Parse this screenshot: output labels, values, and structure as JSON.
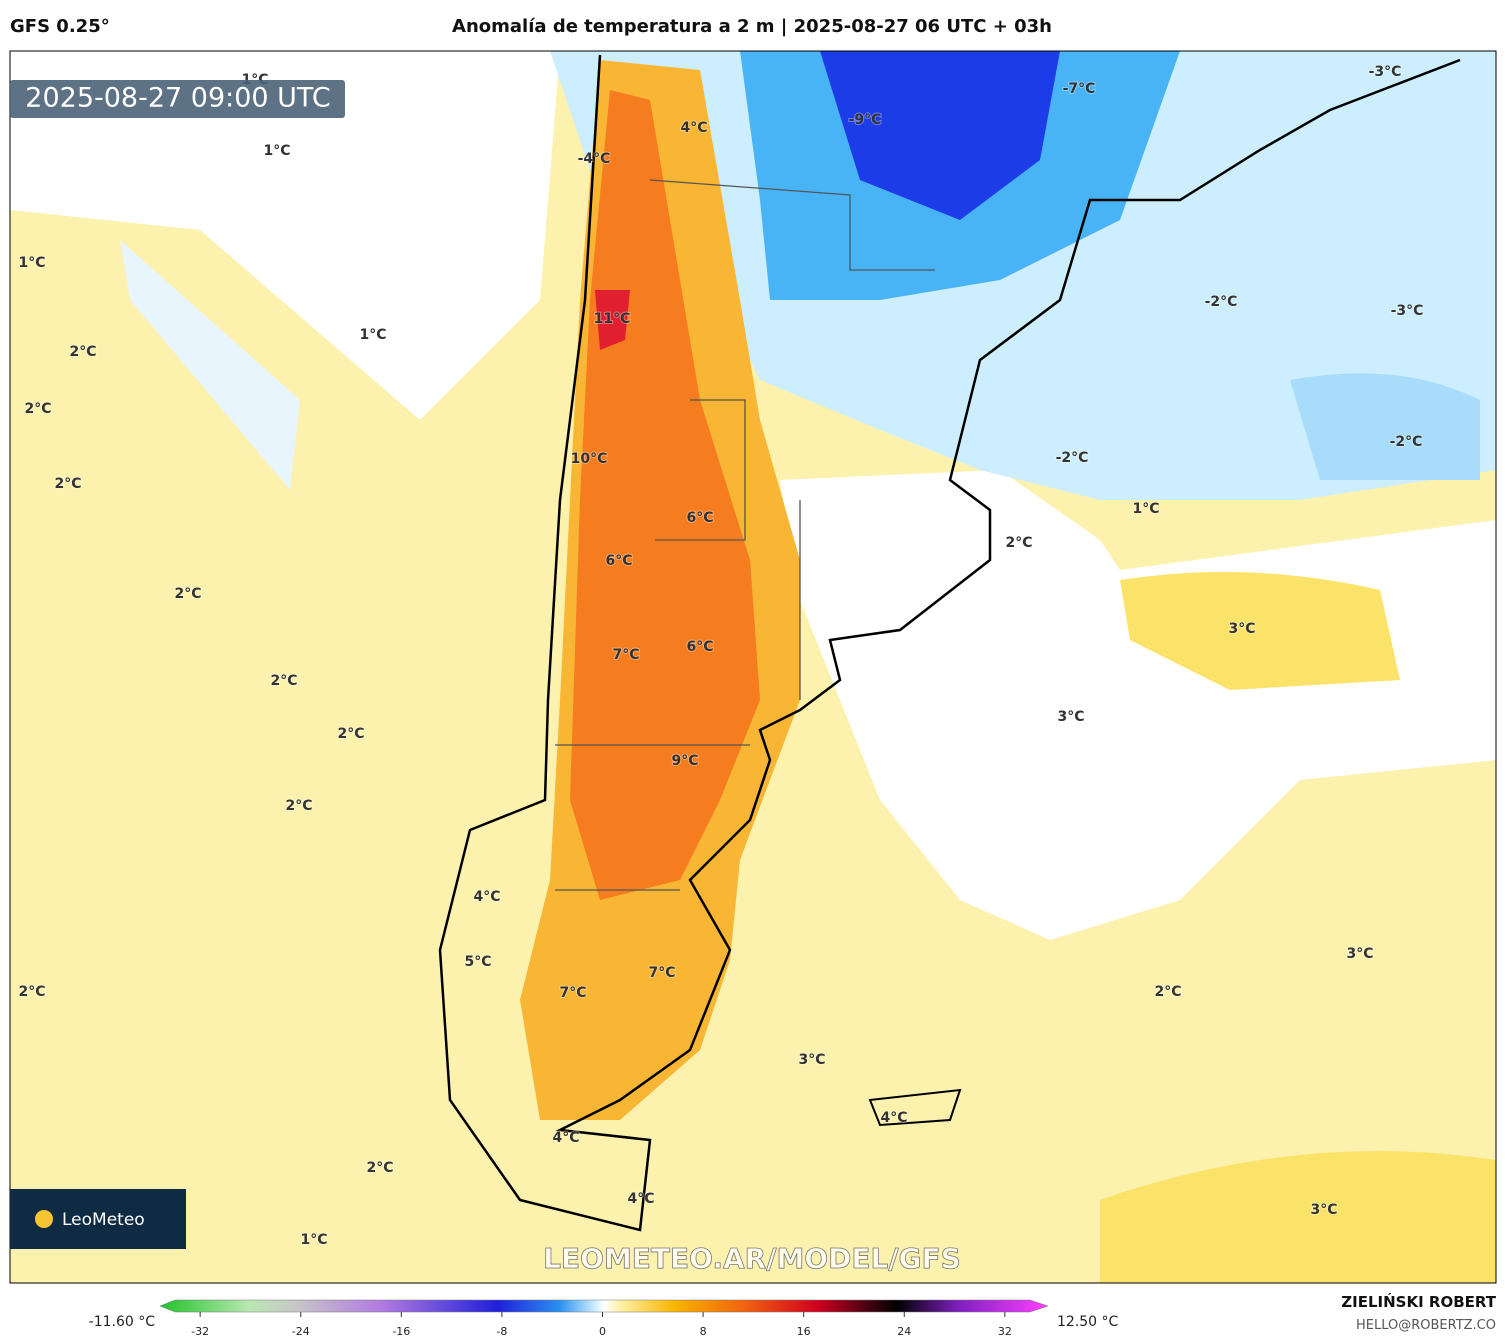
{
  "header": {
    "model": "GFS 0.25°",
    "title": "Anomalía de temperatura a 2 m | 2025-08-27 06 UTC + 03h"
  },
  "map": {
    "valid_time": "2025-08-27 09:00 UTC",
    "labels": [
      "1°C",
      "1°C",
      "4°C",
      "-4°C",
      "-9°C",
      "-7°C",
      "-3°C",
      "1°C",
      "1°C",
      "11°C",
      "2°C",
      "2°C",
      "-2°C",
      "-3°C",
      "-2°C",
      "10°C",
      "2°C",
      "-2°C",
      "1°C",
      "6°C",
      "2°C",
      "6°C",
      "2°C",
      "3°C",
      "7°C",
      "6°C",
      "2°C",
      "3°C",
      "2°C",
      "9°C",
      "2°C",
      "4°C",
      "3°C",
      "7°C",
      "5°C",
      "2°C",
      "7°C",
      "2°C",
      "3°C",
      "4°C",
      "4°C",
      "2°C",
      "4°C",
      "3°C",
      "1°C"
    ],
    "logo": "LeoMeteo",
    "watermark": "LEOMETEO.AR/MODEL/GFS"
  },
  "colorbar": {
    "min_label": "-11.60 °C",
    "max_label": "12.50 °C",
    "lim": [
      -34,
      34
    ],
    "ticks": [
      -32,
      -24,
      -16,
      -8,
      0,
      8,
      16,
      24,
      32
    ]
  },
  "footer": {
    "author": "ZIELIŃSKI ROBERT",
    "contact": "HELLO@ROBERTZ.CO"
  }
}
